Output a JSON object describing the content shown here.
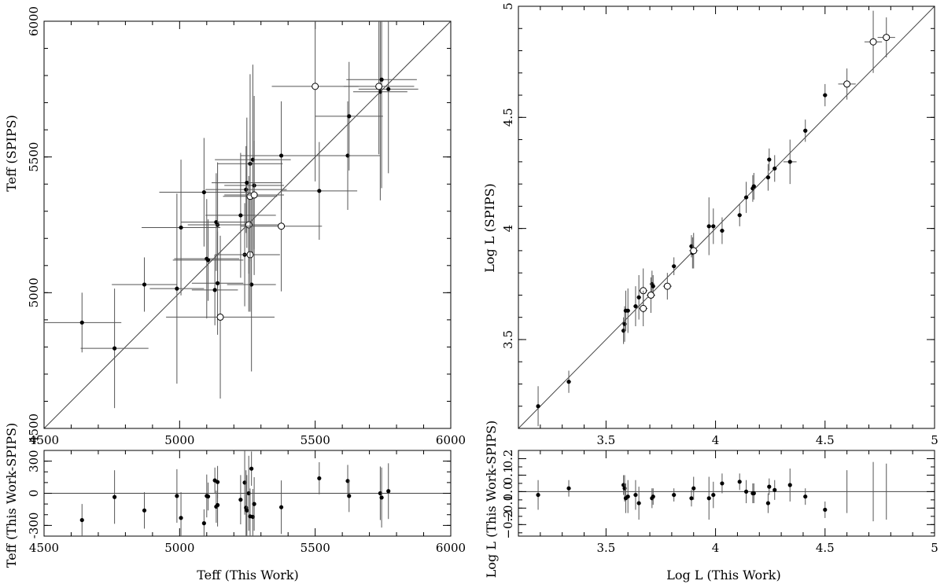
{
  "chart_data": [
    {
      "id": "teff_main",
      "type": "scatter",
      "xlabel": "",
      "ylabel": "Teff (SPIPS)",
      "xlim": [
        4500,
        6000
      ],
      "ylim": [
        4500,
        6000
      ],
      "xticks": [
        4500,
        5000,
        5500,
        6000
      ],
      "yticks": [
        4500,
        5000,
        5500,
        6000
      ],
      "reference_line": "y = x",
      "filled_points": [
        {
          "x": 4640,
          "y": 4890,
          "xerr": 145,
          "yerr": 110
        },
        {
          "x": 4760,
          "y": 4795,
          "xerr": 125,
          "yerr": 220
        },
        {
          "x": 4870,
          "y": 5030,
          "xerr": 120,
          "yerr": 100
        },
        {
          "x": 4990,
          "y": 5015,
          "xerr": 100,
          "yerr": 350
        },
        {
          "x": 5005,
          "y": 5240,
          "xerr": 145,
          "yerr": 250
        },
        {
          "x": 5090,
          "y": 5370,
          "xerr": 165,
          "yerr": 200
        },
        {
          "x": 5100,
          "y": 5125,
          "xerr": 120,
          "yerr": 220
        },
        {
          "x": 5105,
          "y": 5120,
          "xerr": 130,
          "yerr": 150
        },
        {
          "x": 5130,
          "y": 5010,
          "xerr": 85,
          "yerr": 130
        },
        {
          "x": 5135,
          "y": 5260,
          "xerr": 130,
          "yerr": 180
        },
        {
          "x": 5140,
          "y": 5250,
          "xerr": 110,
          "yerr": 230
        },
        {
          "x": 5140,
          "y": 5035,
          "xerr": 95,
          "yerr": 190
        },
        {
          "x": 5225,
          "y": 5285,
          "xerr": 130,
          "yerr": 230
        },
        {
          "x": 5240,
          "y": 5140,
          "xerr": 110,
          "yerr": 190
        },
        {
          "x": 5245,
          "y": 5380,
          "xerr": 150,
          "yerr": 160
        },
        {
          "x": 5248,
          "y": 5405,
          "xerr": 130,
          "yerr": 240
        },
        {
          "x": 5255,
          "y": 5140,
          "xerr": 110,
          "yerr": 210
        },
        {
          "x": 5260,
          "y": 5475,
          "xerr": 120,
          "yerr": 330
        },
        {
          "x": 5265,
          "y": 5030,
          "xerr": 90,
          "yerr": 320
        },
        {
          "x": 5270,
          "y": 5490,
          "xerr": 140,
          "yerr": 350
        },
        {
          "x": 5275,
          "y": 5395,
          "xerr": 110,
          "yerr": 330
        },
        {
          "x": 5375,
          "y": 5505,
          "xerr": 150,
          "yerr": 200
        },
        {
          "x": 5515,
          "y": 5375,
          "xerr": 140,
          "yerr": 180
        },
        {
          "x": 5620,
          "y": 5505,
          "xerr": 120,
          "yerr": 200
        },
        {
          "x": 5625,
          "y": 5650,
          "xerr": 125,
          "yerr": 200
        },
        {
          "x": 5740,
          "y": 5740,
          "xerr": 100,
          "yerr": 400
        },
        {
          "x": 5745,
          "y": 5785,
          "xerr": 130,
          "yerr": 400
        },
        {
          "x": 5770,
          "y": 5750,
          "xerr": 110,
          "yerr": 310
        }
      ],
      "open_points": [
        {
          "x": 5150,
          "y": 4910,
          "xerr": 200,
          "yerr": 300
        },
        {
          "x": 5255,
          "y": 5250,
          "xerr": 120,
          "yerr": 180
        },
        {
          "x": 5260,
          "y": 5140,
          "xerr": 110,
          "yerr": 210
        },
        {
          "x": 5260,
          "y": 5355,
          "xerr": 100,
          "yerr": 240
        },
        {
          "x": 5275,
          "y": 5360,
          "xerr": 110,
          "yerr": 200
        },
        {
          "x": 5375,
          "y": 5245,
          "xerr": 150,
          "yerr": 240
        },
        {
          "x": 5500,
          "y": 5760,
          "xerr": 160,
          "yerr": 350
        },
        {
          "x": 5735,
          "y": 5760,
          "xerr": 130,
          "yerr": 250
        }
      ]
    },
    {
      "id": "teff_resid",
      "type": "scatter",
      "xlabel": "Teff (This Work)",
      "ylabel": "Teff (This Work-SPIPS)",
      "xlim": [
        4500,
        6000
      ],
      "ylim": [
        -400,
        400
      ],
      "xticks": [
        4500,
        5000,
        5500,
        6000
      ],
      "yticks": [
        -300,
        0,
        300
      ],
      "reference_line": "y = 0",
      "points": [
        {
          "x": 4640,
          "y": -250,
          "yerr": 150
        },
        {
          "x": 4760,
          "y": -35,
          "yerr": 250
        },
        {
          "x": 4870,
          "y": -160,
          "yerr": 170
        },
        {
          "x": 4990,
          "y": -25,
          "yerr": 250
        },
        {
          "x": 5005,
          "y": -230,
          "yerr": 240
        },
        {
          "x": 5090,
          "y": -280,
          "yerr": 130
        },
        {
          "x": 5100,
          "y": -25,
          "yerr": 200
        },
        {
          "x": 5105,
          "y": -30,
          "yerr": 130
        },
        {
          "x": 5130,
          "y": 120,
          "yerr": 120
        },
        {
          "x": 5135,
          "y": -125,
          "yerr": 150
        },
        {
          "x": 5140,
          "y": -110,
          "yerr": 200
        },
        {
          "x": 5140,
          "y": 105,
          "yerr": 150
        },
        {
          "x": 5225,
          "y": -60,
          "yerr": 230
        },
        {
          "x": 5240,
          "y": 100,
          "yerr": 300
        },
        {
          "x": 5245,
          "y": -135,
          "yerr": 350
        },
        {
          "x": 5248,
          "y": -160,
          "yerr": 330
        },
        {
          "x": 5255,
          "y": 0,
          "yerr": 350
        },
        {
          "x": 5260,
          "y": -215,
          "yerr": 260
        },
        {
          "x": 5265,
          "y": 230,
          "yerr": 160
        },
        {
          "x": 5270,
          "y": -220,
          "yerr": 260
        },
        {
          "x": 5275,
          "y": -100,
          "yerr": 250
        },
        {
          "x": 5375,
          "y": -130,
          "yerr": 250
        },
        {
          "x": 5515,
          "y": 140,
          "yerr": 150
        },
        {
          "x": 5620,
          "y": 115,
          "yerr": 150
        },
        {
          "x": 5625,
          "y": -25,
          "yerr": 150
        },
        {
          "x": 5740,
          "y": 0,
          "yerr": 250
        },
        {
          "x": 5745,
          "y": -40,
          "yerr": 280
        },
        {
          "x": 5770,
          "y": 20,
          "yerr": 260
        }
      ]
    },
    {
      "id": "logl_main",
      "type": "scatter",
      "xlabel": "",
      "ylabel": "Log L (SPIPS)",
      "xlim": [
        3.1,
        5
      ],
      "ylim": [
        3.1,
        5
      ],
      "xticks": [
        3.5,
        4,
        4.5,
        5
      ],
      "yticks": [
        3.5,
        4,
        4.5,
        5
      ],
      "reference_line": "y = x",
      "filled_points": [
        {
          "x": 3.19,
          "y": 3.2,
          "xerr": 0,
          "yerr": 0.09
        },
        {
          "x": 3.33,
          "y": 3.31,
          "xerr": 0.01,
          "yerr": 0.05
        },
        {
          "x": 3.58,
          "y": 3.54,
          "xerr": 0.01,
          "yerr": 0.06
        },
        {
          "x": 3.585,
          "y": 3.57,
          "xerr": 0.01,
          "yerr": 0.08
        },
        {
          "x": 3.59,
          "y": 3.63,
          "xerr": 0.01,
          "yerr": 0.09
        },
        {
          "x": 3.6,
          "y": 3.63,
          "xerr": 0.01,
          "yerr": 0.1
        },
        {
          "x": 3.635,
          "y": 3.65,
          "xerr": 0.01,
          "yerr": 0.09
        },
        {
          "x": 3.65,
          "y": 3.69,
          "xerr": 0.01,
          "yerr": 0.1
        },
        {
          "x": 3.71,
          "y": 3.75,
          "xerr": 0.01,
          "yerr": 0.06
        },
        {
          "x": 3.715,
          "y": 3.74,
          "xerr": 0.01,
          "yerr": 0.05
        },
        {
          "x": 3.81,
          "y": 3.83,
          "xerr": 0.01,
          "yerr": 0.04
        },
        {
          "x": 3.89,
          "y": 3.92,
          "xerr": 0.01,
          "yerr": 0.05
        },
        {
          "x": 3.895,
          "y": 3.89,
          "xerr": 0.01,
          "yerr": 0.07
        },
        {
          "x": 3.97,
          "y": 4.01,
          "xerr": 0.01,
          "yerr": 0.13
        },
        {
          "x": 3.99,
          "y": 4.01,
          "xerr": 0.01,
          "yerr": 0.08
        },
        {
          "x": 4.03,
          "y": 3.99,
          "xerr": 0.01,
          "yerr": 0.06
        },
        {
          "x": 4.11,
          "y": 4.06,
          "xerr": 0.01,
          "yerr": 0.05
        },
        {
          "x": 4.14,
          "y": 4.14,
          "xerr": 0.01,
          "yerr": 0.07
        },
        {
          "x": 4.17,
          "y": 4.18,
          "xerr": 0.01,
          "yerr": 0.06
        },
        {
          "x": 4.175,
          "y": 4.19,
          "xerr": 0.01,
          "yerr": 0.06
        },
        {
          "x": 4.24,
          "y": 4.23,
          "xerr": 0.01,
          "yerr": 0.06
        },
        {
          "x": 4.245,
          "y": 4.31,
          "xerr": 0.01,
          "yerr": 0.05
        },
        {
          "x": 4.27,
          "y": 4.27,
          "xerr": 0.01,
          "yerr": 0.06
        },
        {
          "x": 4.34,
          "y": 4.3,
          "xerr": 0.03,
          "yerr": 0.1
        },
        {
          "x": 4.41,
          "y": 4.44,
          "xerr": 0.01,
          "yerr": 0.05
        },
        {
          "x": 4.5,
          "y": 4.6,
          "xerr": 0.01,
          "yerr": 0.05
        }
      ],
      "open_points": [
        {
          "x": 3.67,
          "y": 3.72,
          "xerr": 0.02,
          "yerr": 0.1
        },
        {
          "x": 3.67,
          "y": 3.64,
          "xerr": 0.02,
          "yerr": 0.08
        },
        {
          "x": 3.705,
          "y": 3.7,
          "xerr": 0.02,
          "yerr": 0.08
        },
        {
          "x": 3.78,
          "y": 3.74,
          "xerr": 0.02,
          "yerr": 0.06
        },
        {
          "x": 3.9,
          "y": 3.9,
          "xerr": 0.02,
          "yerr": 0.08
        },
        {
          "x": 4.6,
          "y": 4.65,
          "xerr": 0.04,
          "yerr": 0.07
        },
        {
          "x": 4.72,
          "y": 4.84,
          "xerr": 0.04,
          "yerr": 0.14
        },
        {
          "x": 4.78,
          "y": 4.86,
          "xerr": 0.04,
          "yerr": 0.09
        }
      ]
    },
    {
      "id": "logl_resid",
      "type": "scatter",
      "xlabel": "Log L (This Work)",
      "ylabel": "Log L (This Work-SPIPS)",
      "xlim": [
        3.1,
        5
      ],
      "ylim": [
        -0.27,
        0.25
      ],
      "xticks": [
        3.5,
        4,
        4.5,
        5
      ],
      "yticks": [
        -0.2,
        -0.1,
        0,
        0.1,
        0.2
      ],
      "ytick_labels": [
        "−0.2",
        "−0.1",
        "0.0",
        "0.1",
        "0.2"
      ],
      "reference_line": "y = 0",
      "points": [
        {
          "x": 3.19,
          "y": -0.02,
          "yerr": 0.09
        },
        {
          "x": 3.33,
          "y": 0.02,
          "yerr": 0.05
        },
        {
          "x": 3.58,
          "y": 0.04,
          "yerr": 0.06
        },
        {
          "x": 3.585,
          "y": 0.02,
          "yerr": 0.08
        },
        {
          "x": 3.59,
          "y": -0.04,
          "yerr": 0.09
        },
        {
          "x": 3.6,
          "y": -0.03,
          "yerr": 0.1
        },
        {
          "x": 3.635,
          "y": -0.02,
          "yerr": 0.09
        },
        {
          "x": 3.65,
          "y": -0.07,
          "yerr": 0.1
        },
        {
          "x": 3.71,
          "y": -0.04,
          "yerr": 0.06
        },
        {
          "x": 3.715,
          "y": -0.03,
          "yerr": 0.05
        },
        {
          "x": 3.81,
          "y": -0.02,
          "yerr": 0.04
        },
        {
          "x": 3.89,
          "y": -0.04,
          "yerr": 0.05
        },
        {
          "x": 3.9,
          "y": 0.02,
          "yerr": 0.07
        },
        {
          "x": 3.97,
          "y": -0.04,
          "yerr": 0.13
        },
        {
          "x": 3.99,
          "y": -0.02,
          "yerr": 0.08
        },
        {
          "x": 4.03,
          "y": 0.05,
          "yerr": 0.06
        },
        {
          "x": 4.11,
          "y": 0.06,
          "yerr": 0.05
        },
        {
          "x": 4.14,
          "y": 0.0,
          "yerr": 0.07
        },
        {
          "x": 4.17,
          "y": -0.01,
          "yerr": 0.06
        },
        {
          "x": 4.175,
          "y": -0.01,
          "yerr": 0.06
        },
        {
          "x": 4.24,
          "y": -0.07,
          "yerr": 0.06
        },
        {
          "x": 4.245,
          "y": 0.03,
          "yerr": 0.05
        },
        {
          "x": 4.27,
          "y": 0.01,
          "yerr": 0.06
        },
        {
          "x": 4.34,
          "y": 0.04,
          "yerr": 0.1
        },
        {
          "x": 4.41,
          "y": -0.03,
          "yerr": 0.05
        },
        {
          "x": 4.5,
          "y": -0.11,
          "yerr": 0.05
        }
      ],
      "bars_without_points": [
        {
          "x": 4.6,
          "y": 0,
          "yerr": 0.13
        },
        {
          "x": 4.72,
          "y": 0,
          "yerr": 0.18
        },
        {
          "x": 4.78,
          "y": 0,
          "yerr": 0.17
        }
      ]
    }
  ]
}
